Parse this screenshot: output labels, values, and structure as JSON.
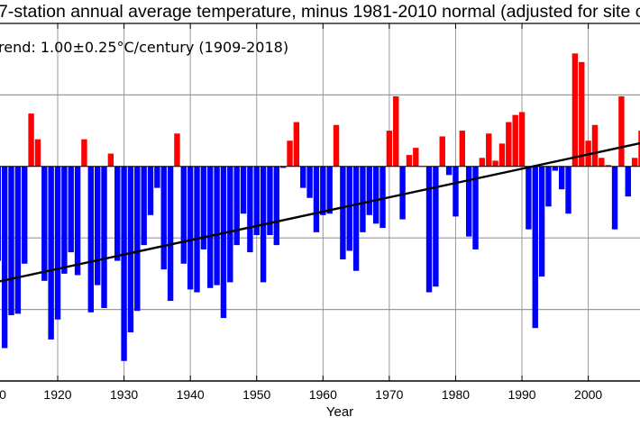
{
  "chart_data": {
    "type": "bar",
    "title": "7-station annual average temperature, minus 1981-2010 normal (adjusted for site c",
    "annotation": "rend: 1.00±0.25°C/century (1909-2018)",
    "xlabel": "Year",
    "ylabel": "",
    "xlim": [
      1911.3,
      2007.8
    ],
    "ylim": [
      -1.5,
      1.0
    ],
    "x_ticks": [
      1910,
      1920,
      1930,
      1940,
      1950,
      1960,
      1970,
      1980,
      1990,
      2000,
      2010
    ],
    "x_tick_labels": [
      "0",
      "1920",
      "1930",
      "1940",
      "1950",
      "1960",
      "1970",
      "1980",
      "1990",
      "2000",
      ""
    ],
    "y_gridlines": [
      0.5,
      0.0,
      -0.5,
      -1.0
    ],
    "grid": true,
    "colors": {
      "positive": "#ff0000",
      "negative": "#0000ff",
      "trend": "#000000",
      "grid": "#999999"
    },
    "trend": {
      "slope_per_year": 0.01,
      "zero_year": 1991.6,
      "label": "1.00±0.25°C/century (1909-2018)"
    },
    "years": [
      1911,
      1912,
      1913,
      1914,
      1915,
      1916,
      1917,
      1918,
      1919,
      1920,
      1921,
      1922,
      1923,
      1924,
      1925,
      1926,
      1927,
      1928,
      1929,
      1930,
      1931,
      1932,
      1933,
      1934,
      1935,
      1936,
      1937,
      1938,
      1939,
      1940,
      1941,
      1942,
      1943,
      1944,
      1945,
      1946,
      1947,
      1948,
      1949,
      1950,
      1951,
      1952,
      1953,
      1954,
      1955,
      1956,
      1957,
      1958,
      1959,
      1960,
      1961,
      1962,
      1963,
      1964,
      1965,
      1966,
      1967,
      1968,
      1969,
      1970,
      1971,
      1972,
      1973,
      1974,
      1975,
      1976,
      1977,
      1978,
      1979,
      1980,
      1981,
      1982,
      1983,
      1984,
      1985,
      1986,
      1987,
      1988,
      1989,
      1990,
      1991,
      1992,
      1993,
      1994,
      1995,
      1996,
      1997,
      1998,
      1999,
      2000,
      2001,
      2002,
      2003,
      2004,
      2005,
      2006,
      2007,
      2008
    ],
    "values": [
      -0.66,
      -1.27,
      -1.04,
      -1.03,
      -0.68,
      0.37,
      0.19,
      -0.8,
      -1.21,
      -1.07,
      -0.75,
      -0.6,
      -0.76,
      0.19,
      -1.02,
      -0.83,
      -0.99,
      0.09,
      -0.66,
      -1.36,
      -1.16,
      -1.01,
      -0.55,
      -0.34,
      -0.15,
      -0.72,
      -0.94,
      0.23,
      -0.68,
      -0.86,
      -0.88,
      -0.58,
      -0.85,
      -0.83,
      -1.06,
      -0.81,
      -0.55,
      -0.33,
      -0.6,
      -0.48,
      -0.81,
      -0.48,
      -0.55,
      -0.01,
      0.18,
      0.31,
      -0.15,
      -0.22,
      -0.46,
      -0.34,
      -0.33,
      0.29,
      -0.65,
      -0.59,
      -0.73,
      -0.46,
      -0.34,
      -0.4,
      -0.43,
      0.25,
      0.49,
      -0.37,
      0.08,
      0.13,
      0.0,
      -0.88,
      -0.84,
      0.21,
      -0.06,
      -0.35,
      0.25,
      -0.49,
      -0.58,
      0.06,
      0.23,
      0.04,
      0.16,
      0.31,
      0.36,
      0.38,
      -0.44,
      -1.13,
      -0.77,
      -0.28,
      -0.03,
      -0.16,
      -0.33,
      0.79,
      0.73,
      0.18,
      0.29,
      0.06,
      0.01,
      -0.44,
      0.49,
      -0.21,
      0.06,
      0.25
    ]
  }
}
